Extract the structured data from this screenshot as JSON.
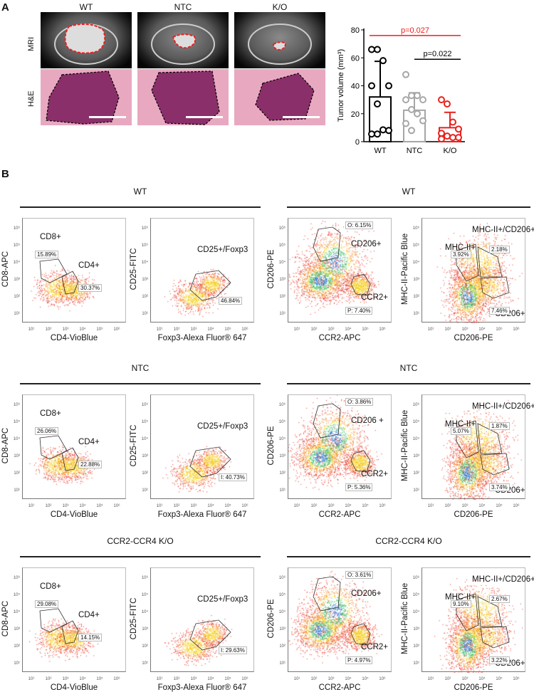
{
  "panel_a": {
    "letter": "A",
    "columns": [
      "WT",
      "NTC",
      "K/O"
    ],
    "rows": [
      "MRI",
      "H&E"
    ]
  },
  "chart_data": {
    "type": "bar",
    "ylabel": "Tumor volume (mm³)",
    "ylim": [
      0,
      80
    ],
    "yticks": [
      0,
      20,
      40,
      60,
      80
    ],
    "categories": [
      "WT",
      "NTC",
      "K/O"
    ],
    "values": [
      32,
      22.5,
      10
    ],
    "sd": [
      25.5,
      12.5,
      11
    ],
    "colors": [
      "#000000",
      "#a6a6a6",
      "#e8211d"
    ],
    "points": [
      [
        66,
        66,
        58,
        40,
        40,
        27,
        8.5,
        8,
        5.5,
        5.5
      ],
      [
        48,
        33,
        33,
        30,
        30,
        23,
        20,
        15,
        13,
        8
      ],
      [
        30,
        27,
        14,
        9,
        6,
        4,
        3,
        3,
        2
      ]
    ],
    "annotations": [
      {
        "text": "p=0.027",
        "from": "WT",
        "to": "K/O",
        "y": 76,
        "color": "#e8211d"
      },
      {
        "text": "p=0.022",
        "from": "NTC",
        "to": "K/O",
        "y": 59,
        "color": "#000000"
      }
    ]
  },
  "panel_b": {
    "letter": "B",
    "tick_labels": [
      "10¹",
      "10²",
      "10³",
      "10⁴",
      "10⁵",
      "10⁶"
    ],
    "groups": [
      {
        "title_left": "WT",
        "title_right": "WT",
        "plots": [
          {
            "type": "t",
            "xlabel": "CD4-VioBlue",
            "ylabel": "CD8-APC",
            "labels": [
              "CD8+",
              "CD4+"
            ],
            "pcts": [
              "15.89%",
              "30.37%"
            ]
          },
          {
            "type": "treg",
            "xlabel": "Foxp3-Alexa Fluor® 647",
            "ylabel": "CD25-FITC",
            "labels": [
              "CD25+/Foxp3"
            ],
            "pcts": [
              "46.84%"
            ]
          },
          {
            "type": "mac",
            "xlabel": "CCR2-APC",
            "ylabel": "CD206-PE",
            "labels": [
              "CD206+",
              "CCR2+"
            ],
            "pcts": [
              "O: 6.15%",
              "P: 7.40%"
            ]
          },
          {
            "type": "mhc",
            "xlabel": "CD206-PE",
            "ylabel": "MHC-II-Pacific Blue",
            "labels": [
              "MHC-II+/CD206+",
              "MHC-II+",
              "CD206+"
            ],
            "pcts": [
              "2.18%",
              "3.92%",
              "7.46%"
            ]
          }
        ]
      },
      {
        "title_left": "NTC",
        "title_right": "NTC",
        "plots": [
          {
            "type": "t",
            "xlabel": "CD4-VioBlue",
            "ylabel": "CD8-APC",
            "labels": [
              "CD8+",
              "CD4+"
            ],
            "pcts": [
              "26.06%",
              "22.88%"
            ]
          },
          {
            "type": "treg",
            "xlabel": "Foxp3-Alexa Fluor® 647",
            "ylabel": "CD25-FITC",
            "labels": [
              "CD25+/Foxp3"
            ],
            "pcts": [
              "I: 40.73%"
            ]
          },
          {
            "type": "mac",
            "xlabel": "CCR2-APC",
            "ylabel": "CD206-PE",
            "labels": [
              "CD206 +",
              "CCR2+"
            ],
            "pcts": [
              "O: 3.86%",
              "P: 5.36%"
            ]
          },
          {
            "type": "mhc",
            "xlabel": "CD206-PE",
            "ylabel": "MHC-II-Pacific Blue",
            "labels": [
              "MHC-II+/CD206+",
              "MHC-II+",
              "CD206+"
            ],
            "pcts": [
              "1.87%",
              "5.07%",
              "3.74%"
            ]
          }
        ]
      },
      {
        "title_left": "CCR2-CCR4 K/O",
        "title_right": "CCR2-CCR4 K/O",
        "plots": [
          {
            "type": "t",
            "xlabel": "CD4-VioBlue",
            "ylabel": "CD8-APC",
            "labels": [
              "CD8+",
              "CD4+"
            ],
            "pcts": [
              "29.08%",
              "14.15%"
            ]
          },
          {
            "type": "treg",
            "xlabel": "Foxp3-Alexa Fluor® 647",
            "ylabel": "CD25-FITC",
            "labels": [
              "CD25+/Foxp3"
            ],
            "pcts": [
              "I: 29.63%"
            ]
          },
          {
            "type": "mac",
            "xlabel": "CCR2-APC",
            "ylabel": "CD206-PE",
            "labels": [
              "CD206+",
              "CCR2+"
            ],
            "pcts": [
              "O: 3.61%",
              "P: 4.97%"
            ]
          },
          {
            "type": "mhc",
            "xlabel": "CD206-PE",
            "ylabel": "MHC-II-Pacific Blue",
            "labels": [
              "MHC-II+/CD206+",
              "MHC-II+",
              "CD206+"
            ],
            "pcts": [
              "2.67%",
              "9.10%",
              "3.22%"
            ]
          }
        ]
      }
    ]
  }
}
